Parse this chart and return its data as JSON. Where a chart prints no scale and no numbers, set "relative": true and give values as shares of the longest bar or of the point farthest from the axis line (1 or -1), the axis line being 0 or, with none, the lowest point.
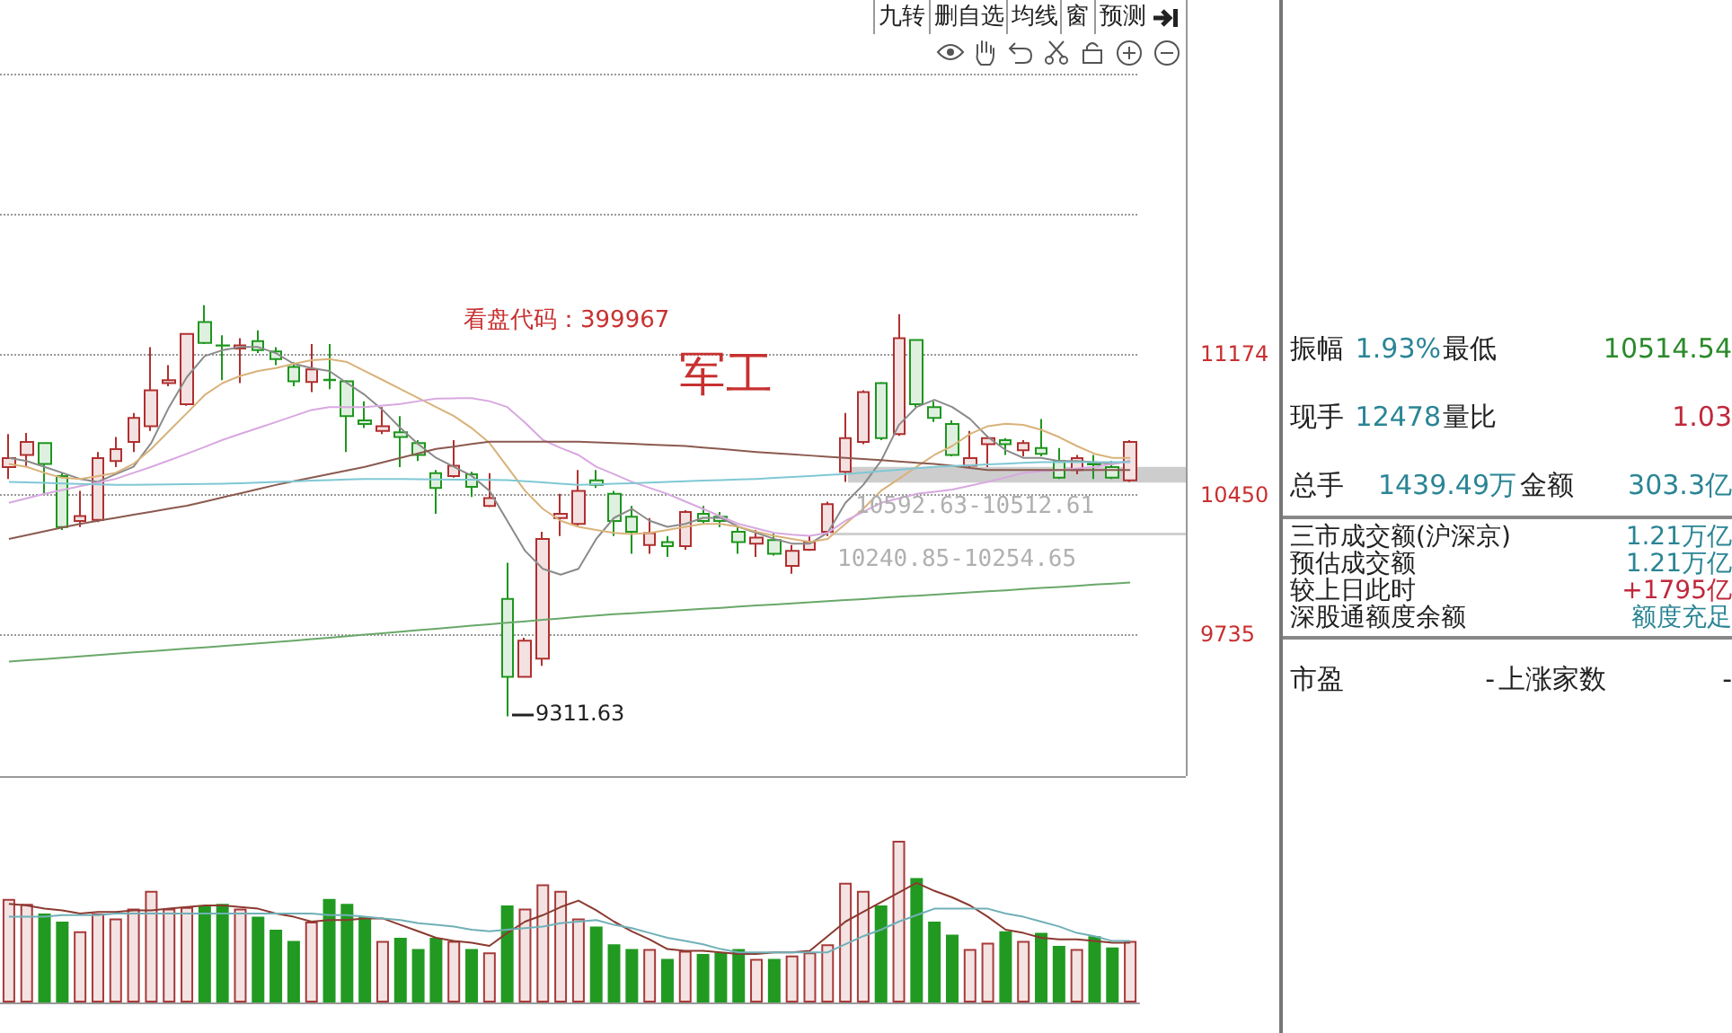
{
  "chart_data": [
    {
      "type": "candlestick",
      "categories": [
        null,
        null,
        null,
        null,
        null,
        null,
        null,
        null,
        null,
        null,
        null,
        null,
        null,
        null,
        null,
        null,
        null,
        null,
        null,
        null,
        null,
        null,
        null,
        null,
        null,
        null,
        null,
        null,
        null,
        null,
        null,
        null,
        null,
        null,
        null,
        null,
        null,
        null,
        null,
        null,
        null,
        null,
        null,
        null,
        null,
        null,
        null,
        null,
        null,
        null,
        null,
        null,
        null,
        null,
        null,
        null,
        null,
        null,
        null,
        null,
        null,
        null,
        null,
        null
      ],
      "ohlc": [
        [
          10592,
          10761,
          10531,
          10638
        ],
        [
          10654,
          10767,
          10592,
          10721
        ],
        [
          10715,
          10720,
          10454,
          10608
        ],
        [
          10546,
          10561,
          10269,
          10284
        ],
        [
          10315,
          10469,
          10284,
          10340
        ],
        [
          10321,
          10669,
          10309,
          10638
        ],
        [
          10623,
          10746,
          10592,
          10684
        ],
        [
          10721,
          10869,
          10669,
          10844
        ],
        [
          10801,
          11207,
          10777,
          10986
        ],
        [
          11023,
          11115,
          11007,
          11038
        ],
        [
          10915,
          11275,
          10906,
          11275
        ],
        [
          11337,
          11423,
          11223,
          11229
        ],
        [
          11217,
          11269,
          11038,
          11215
        ],
        [
          11201,
          11254,
          11023,
          11217
        ],
        [
          11238,
          11294,
          11177,
          11192
        ],
        [
          11186,
          11207,
          11115,
          11146
        ],
        [
          11106,
          11130,
          11007,
          11032
        ],
        [
          11029,
          11223,
          10977,
          11093
        ],
        [
          11040,
          11223,
          10992,
          11038
        ],
        [
          11032,
          11038,
          10669,
          10853
        ],
        [
          10832,
          10930,
          10792,
          10813
        ],
        [
          10777,
          10900,
          10761,
          10801
        ],
        [
          10770,
          10853,
          10592,
          10746
        ],
        [
          10715,
          10730,
          10623,
          10654
        ],
        [
          10561,
          10577,
          10352,
          10484
        ],
        [
          10546,
          10730,
          10537,
          10598
        ],
        [
          10555,
          10567,
          10438,
          10490
        ],
        [
          10392,
          10561,
          10386,
          10432
        ],
        [
          9915,
          10100,
          9311.63,
          9515
        ],
        [
          9515,
          9715,
          9515,
          9700
        ],
        [
          9608,
          10260,
          9571,
          10223
        ],
        [
          10330,
          10454,
          10238,
          10352
        ],
        [
          10300,
          10577,
          10290,
          10469
        ],
        [
          10524,
          10577,
          10484,
          10500
        ],
        [
          10454,
          10469,
          10238,
          10315
        ],
        [
          10337,
          10392,
          10146,
          10260
        ],
        [
          10192,
          10330,
          10146,
          10253
        ],
        [
          10207,
          10238,
          10130,
          10186
        ],
        [
          10186,
          10370,
          10167,
          10361
        ],
        [
          10352,
          10392,
          10300,
          10315
        ],
        [
          10337,
          10361,
          10284,
          10315
        ],
        [
          10260,
          10284,
          10146,
          10207
        ],
        [
          10198,
          10269,
          10130,
          10229
        ],
        [
          10217,
          10253,
          10137,
          10146
        ],
        [
          10084,
          10192,
          10044,
          10161
        ],
        [
          10167,
          10238,
          10161,
          10207
        ],
        [
          10260,
          10414,
          10238,
          10401
        ],
        [
          10567,
          10869,
          10515,
          10740
        ],
        [
          10721,
          10986,
          10709,
          10977
        ],
        [
          11023,
          11029,
          10730,
          10740
        ],
        [
          10761,
          11377,
          10752,
          11254
        ],
        [
          11244,
          11244,
          10900,
          10915
        ],
        [
          10900,
          10930,
          10823,
          10844
        ],
        [
          10813,
          10832,
          10647,
          10654
        ],
        [
          10598,
          10777,
          10592,
          10638
        ],
        [
          10709,
          10752,
          10592,
          10740
        ],
        [
          10730,
          10740,
          10654,
          10709
        ],
        [
          10678,
          10730,
          10647,
          10715
        ],
        [
          10690,
          10838,
          10647,
          10660
        ],
        [
          10623,
          10690,
          10531,
          10537
        ],
        [
          10577,
          10654,
          10555,
          10638
        ],
        [
          10610,
          10654,
          10531,
          10605
        ],
        [
          10592,
          10623,
          10531,
          10537
        ],
        [
          10524,
          10730,
          10515,
          10721
        ]
      ],
      "colors": [
        "#b03030",
        "#b03030",
        "#1e961e",
        "#1e961e",
        "#b03030",
        "#b03030",
        "#b03030",
        "#b03030",
        "#b03030",
        "#b03030",
        "#b03030",
        "#1e961e",
        "#1e961e",
        "#b03030",
        "#1e961e",
        "#1e961e",
        "#1e961e",
        "#b03030",
        "#1e961e",
        "#1e961e",
        "#1e961e",
        "#b03030",
        "#1e961e",
        "#1e961e",
        "#1e961e",
        "#b03030",
        "#1e961e",
        "#b03030",
        "#1e961e",
        "#b03030",
        "#b03030",
        "#b03030",
        "#b03030",
        "#1e961e",
        "#1e961e",
        "#1e961e",
        "#b03030",
        "#1e961e",
        "#b03030",
        "#1e961e",
        "#1e961e",
        "#1e961e",
        "#b03030",
        "#1e961e",
        "#b03030",
        "#b03030",
        "#b03030",
        "#b03030",
        "#b03030",
        "#1e961e",
        "#b03030",
        "#1e961e",
        "#1e961e",
        "#1e961e",
        "#b03030",
        "#b03030",
        "#1e961e",
        "#b03030",
        "#1e961e",
        "#1e961e",
        "#b03030",
        "#1e961e",
        "#1e961e",
        "#b03030"
      ],
      "ylim": [
        9005,
        12990
      ],
      "yticks": [
        9735,
        10450,
        11174,
        {
          "value": 11894,
          "label": null
        },
        {
          "value": 12614,
          "label": null
        }
      ],
      "tick_labels": "y",
      "grid": "y",
      "series": [
        {
          "type": "line",
          "color": "#8a8a8a",
          "values": [
            10639,
            10623,
            10593,
            10562,
            10531,
            10516,
            10555,
            10593,
            10716,
            10900,
            11054,
            11162,
            11192,
            11208,
            11208,
            11177,
            11122,
            11100,
            11085,
            11023,
            10962,
            10885,
            10792,
            10709,
            10639,
            10593,
            10547,
            10470,
            10316,
            10162,
            10069,
            10039,
            10069,
            10223,
            10331,
            10377,
            10316,
            10285,
            10300,
            10331,
            10331,
            10285,
            10254,
            10223,
            10199,
            10199,
            10254,
            10408,
            10500,
            10623,
            10808,
            10900,
            10937,
            10900,
            10839,
            10746,
            10679,
            10639,
            10639,
            10623,
            10623,
            10617,
            10608,
            10623
          ]
        },
        {
          "type": "line",
          "color": "#d9b27a",
          "values": [
            10608,
            10593,
            10562,
            10537,
            10531,
            10545,
            10562,
            10608,
            10685,
            10777,
            10869,
            10962,
            11023,
            11060,
            11085,
            11100,
            11122,
            11140,
            11146,
            11131,
            11085,
            11039,
            10992,
            10946,
            10900,
            10854,
            10792,
            10716,
            10593,
            10470,
            10377,
            10316,
            10285,
            10269,
            10254,
            10248,
            10254,
            10269,
            10285,
            10300,
            10300,
            10285,
            10260,
            10239,
            10223,
            10208,
            10223,
            10300,
            10377,
            10470,
            10531,
            10593,
            10654,
            10700,
            10762,
            10802,
            10814,
            10808,
            10783,
            10746,
            10700,
            10660,
            10639,
            10639
          ]
        },
        {
          "type": "line",
          "color": "#d8a8e0",
          "values": [
            10408,
            10431,
            10454,
            10474,
            10494,
            10512,
            10531,
            10562,
            10593,
            10626,
            10660,
            10695,
            10731,
            10762,
            10792,
            10823,
            10854,
            10885,
            10900,
            10900,
            10900,
            10908,
            10916,
            10930,
            10943,
            10945,
            10946,
            10930,
            10900,
            10820,
            10731,
            10690,
            10654,
            10593,
            10555,
            10516,
            10485,
            10454,
            10415,
            10377,
            10338,
            10300,
            10277,
            10254,
            10245,
            10239,
            10254,
            10316,
            10362,
            10408,
            10431,
            10454,
            10465,
            10476,
            10496,
            10516,
            10539,
            10562,
            10570,
            10577,
            10585,
            10593,
            10608,
            10623
          ]
        },
        {
          "type": "line",
          "color": "#8b5a50",
          "values": [
            10223,
            10242,
            10262,
            10281,
            10300,
            10316,
            10331,
            10347,
            10362,
            10378,
            10393,
            10414,
            10436,
            10457,
            10479,
            10500,
            10519,
            10537,
            10556,
            10574,
            10593,
            10616,
            10639,
            10662,
            10685,
            10697,
            10710,
            10722,
            10722,
            10722,
            10722,
            10722,
            10722,
            10718,
            10715,
            10711,
            10707,
            10704,
            10700,
            10692,
            10685,
            10677,
            10669,
            10663,
            10657,
            10651,
            10645,
            10639,
            10633,
            10627,
            10620,
            10614,
            10608,
            10598,
            10587,
            10577,
            10577,
            10577,
            10577,
            10577,
            10577,
            10577,
            10577,
            10577
          ]
        },
        {
          "type": "line",
          "color": "#80c8d4",
          "values": [
            10516,
            10513,
            10511,
            10508,
            10505,
            10503,
            10500,
            10501,
            10502,
            10503,
            10504,
            10505,
            10506,
            10509,
            10512,
            10515,
            10518,
            10522,
            10525,
            10528,
            10531,
            10530,
            10530,
            10529,
            10528,
            10527,
            10527,
            10526,
            10525,
            10519,
            10513,
            10506,
            10500,
            10503,
            10506,
            10509,
            10512,
            10516,
            10519,
            10522,
            10525,
            10528,
            10531,
            10536,
            10541,
            10546,
            10551,
            10556,
            10563,
            10571,
            10578,
            10586,
            10593,
            10597,
            10601,
            10605,
            10609,
            10613,
            10617,
            10617,
            10617,
            10617,
            10617,
            10617
          ]
        },
        {
          "type": "line",
          "color": "#6aa86a",
          "values": [
            9593,
            9600,
            9606,
            9613,
            9620,
            9626,
            9633,
            9640,
            9646,
            9653,
            9660,
            9666,
            9673,
            9680,
            9686,
            9693,
            9700,
            9708,
            9715,
            9723,
            9731,
            9738,
            9746,
            9754,
            9761,
            9769,
            9777,
            9784,
            9792,
            9800,
            9807,
            9815,
            9822,
            9830,
            9836,
            9841,
            9847,
            9853,
            9858,
            9864,
            9869,
            9875,
            9881,
            9886,
            9892,
            9898,
            9903,
            9909,
            9914,
            9920,
            9926,
            9931,
            9937,
            9943,
            9948,
            9954,
            9959,
            9965,
            9971,
            9976,
            9982,
            9988,
            9993,
            9999
          ]
        }
      ],
      "bands": [
        {
          "axis": "y",
          "from": 10512.61,
          "to": 10592.63,
          "label": "10592.63-10512.61",
          "color": "#c4c4c4"
        },
        {
          "axis": "y",
          "from": 10240.85,
          "to": 10254.65,
          "label": "10240.85-10254.65",
          "color": "#c8c8c8"
        }
      ],
      "annotations": [
        "看盘代码：399967",
        "军工",
        "9311.63",
        "九转",
        "删自选",
        "均线",
        "窗",
        "预测"
      ]
    },
    {
      "type": "bar",
      "relative": true,
      "categories": [
        null,
        null,
        null,
        null,
        null,
        null,
        null,
        null,
        null,
        null,
        null,
        null,
        null,
        null,
        null,
        null,
        null,
        null,
        null,
        null,
        null,
        null,
        null,
        null,
        null,
        null,
        null,
        null,
        null,
        null,
        null,
        null,
        null,
        null,
        null,
        null,
        null,
        null,
        null,
        null,
        null,
        null,
        null,
        null,
        null,
        null,
        null,
        null,
        null,
        null,
        null,
        null,
        null,
        null,
        null,
        null,
        null,
        null,
        null,
        null,
        null,
        null,
        null,
        null
      ],
      "values": [
        0.64,
        0.61,
        0.55,
        0.5,
        0.44,
        0.55,
        0.52,
        0.58,
        0.69,
        0.58,
        0.59,
        0.6,
        0.61,
        0.58,
        0.53,
        0.45,
        0.38,
        0.5,
        0.64,
        0.61,
        0.53,
        0.38,
        0.4,
        0.33,
        0.4,
        0.38,
        0.33,
        0.31,
        0.6,
        0.58,
        0.73,
        0.69,
        0.52,
        0.47,
        0.36,
        0.33,
        0.33,
        0.27,
        0.32,
        0.3,
        0.31,
        0.33,
        0.27,
        0.27,
        0.29,
        0.31,
        0.36,
        0.74,
        0.69,
        0.6,
        1,
        0.77,
        0.5,
        0.42,
        0.33,
        0.37,
        0.44,
        0.38,
        0.43,
        0.35,
        0.33,
        0.41,
        0.34,
        0.38
      ],
      "colors": [
        "#a83a3a",
        "#a83a3a",
        "#229a22",
        "#229a22",
        "#a83a3a",
        "#a83a3a",
        "#a83a3a",
        "#a83a3a",
        "#a83a3a",
        "#a83a3a",
        "#a83a3a",
        "#229a22",
        "#229a22",
        "#a83a3a",
        "#229a22",
        "#229a22",
        "#229a22",
        "#a83a3a",
        "#229a22",
        "#229a22",
        "#229a22",
        "#a83a3a",
        "#229a22",
        "#229a22",
        "#229a22",
        "#a83a3a",
        "#229a22",
        "#a83a3a",
        "#229a22",
        "#a83a3a",
        "#a83a3a",
        "#a83a3a",
        "#a83a3a",
        "#229a22",
        "#229a22",
        "#229a22",
        "#a83a3a",
        "#229a22",
        "#a83a3a",
        "#229a22",
        "#229a22",
        "#229a22",
        "#a83a3a",
        "#229a22",
        "#a83a3a",
        "#a83a3a",
        "#a83a3a",
        "#a83a3a",
        "#a83a3a",
        "#229a22",
        "#a83a3a",
        "#229a22",
        "#229a22",
        "#229a22",
        "#a83a3a",
        "#a83a3a",
        "#229a22",
        "#a83a3a",
        "#229a22",
        "#229a22",
        "#a83a3a",
        "#229a22",
        "#229a22",
        "#a83a3a"
      ],
      "tick_labels": false,
      "series": [
        {
          "type": "line",
          "color": "#8b3a30",
          "values": [
            0.61,
            0.6,
            0.58,
            0.57,
            0.55,
            0.56,
            0.56,
            0.57,
            0.57,
            0.58,
            0.59,
            0.6,
            0.6,
            0.59,
            0.58,
            0.55,
            0.53,
            0.5,
            0.51,
            0.51,
            0.52,
            0.52,
            0.48,
            0.44,
            0.4,
            0.38,
            0.37,
            0.35,
            0.43,
            0.5,
            0.54,
            0.59,
            0.63,
            0.57,
            0.5,
            0.44,
            0.39,
            0.33,
            0.32,
            0.32,
            0.31,
            0.3,
            0.3,
            0.31,
            0.31,
            0.32,
            0.41,
            0.5,
            0.56,
            0.62,
            0.68,
            0.74,
            0.69,
            0.65,
            0.6,
            0.53,
            0.45,
            0.43,
            0.4,
            0.39,
            0.39,
            0.38,
            0.37,
            0.37
          ]
        },
        {
          "type": "line",
          "color": "#70b0b8",
          "values": [
            0.53,
            0.53,
            0.53,
            0.54,
            0.54,
            0.54,
            0.55,
            0.55,
            0.55,
            0.55,
            0.55,
            0.55,
            0.55,
            0.55,
            0.55,
            0.55,
            0.55,
            0.55,
            0.54,
            0.54,
            0.53,
            0.52,
            0.51,
            0.49,
            0.48,
            0.47,
            0.45,
            0.44,
            0.45,
            0.46,
            0.47,
            0.49,
            0.5,
            0.51,
            0.48,
            0.46,
            0.43,
            0.4,
            0.38,
            0.36,
            0.33,
            0.31,
            0.31,
            0.31,
            0.31,
            0.31,
            0.31,
            0.36,
            0.41,
            0.45,
            0.5,
            0.54,
            0.58,
            0.58,
            0.58,
            0.58,
            0.55,
            0.53,
            0.5,
            0.47,
            0.43,
            0.41,
            0.38,
            0.38
          ]
        }
      ]
    },
    {
      "type": "other",
      "annotations": [
        "振幅",
        "1.93%",
        "最低",
        "10514.54",
        "现手",
        "12478",
        "量比",
        "1.03",
        "总手",
        "1439.49万",
        "金额",
        "303.3亿",
        "三市成交额(沪深京)",
        "1.21万亿",
        "预估成交额",
        "1.21万亿",
        "较上日此时",
        "+1795亿",
        "深股通额度余额",
        "额度充足",
        "市盈",
        "-",
        "上涨家数",
        "-"
      ]
    }
  ]
}
